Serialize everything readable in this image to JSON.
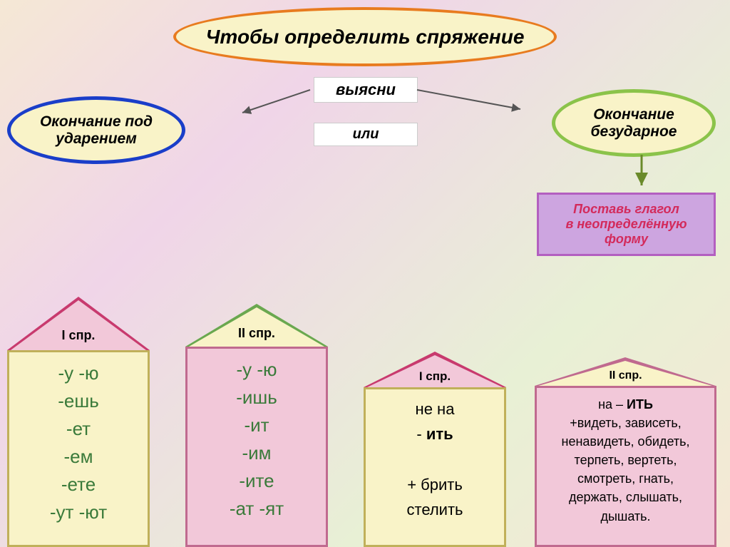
{
  "title": {
    "text": "Чтобы  определить  спряжение",
    "fontsize": 28,
    "bg": "#f9f3c8",
    "border": "#e87b1f"
  },
  "center": {
    "vyasni": "выясни",
    "ili": "или",
    "fontsize": 22,
    "color": "#000"
  },
  "left_oval": {
    "line1": "Окончание под",
    "line2": "ударением",
    "bg": "#f9f3c8",
    "border": "#1a3ec9",
    "fontsize": 21
  },
  "right_oval": {
    "line1": "Окончание",
    "line2": "безударное",
    "bg": "#f9f3c8",
    "border": "#8bc34a",
    "fontsize": 21
  },
  "purple_box": {
    "line1": "Поставь глагол",
    "line2": "в неопределённую",
    "line3": "форму",
    "bg": "#cda5e0",
    "border": "#b35fc0",
    "text_color": "#d32a5b",
    "fontsize": 18
  },
  "house1": {
    "label": "I спр.",
    "roof_bg": "#f2c8d9",
    "roof_border": "#c83a6e",
    "body_bg": "#f9f3c8",
    "body_border": "#c0b05a",
    "text_color": "#3a7a3a",
    "fontsize": 26,
    "lines": [
      "-у  -ю",
      "-ешь",
      "-ет",
      "-ем",
      "-ете",
      "-ут  -ют"
    ]
  },
  "house2": {
    "label": "II  спр.",
    "roof_bg": "#f9f3c8",
    "roof_border": "#6aa84f",
    "body_bg": "#f2c8d9",
    "body_border": "#c06a8f",
    "text_color": "#3a7a3a",
    "fontsize": 26,
    "lines": [
      "-у   -ю",
      "-ишь",
      "-ит",
      "-им",
      "-ите",
      "-ат  -ят"
    ]
  },
  "house3": {
    "label": "I спр.",
    "roof_bg": "#f2c8d9",
    "roof_border": "#c83a6e",
    "body_bg": "#f9f3c8",
    "body_border": "#c0b05a",
    "text_color": "#000",
    "fontsize": 22,
    "html": "не на<br>- <b>ить</b><br><br>+ брить<br>стелить"
  },
  "house4": {
    "label": "II спр.",
    "roof_bg": "#f9f3c8",
    "roof_border": "#c06a8f",
    "body_bg": "#f2c8d9",
    "body_border": "#c06a8f",
    "text_color": "#000",
    "fontsize": 18,
    "html": "на – <b>ИТЬ</b><br>+видеть, зависеть,<br>ненавидеть, обидеть,<br>терпеть, вертеть,<br>смотреть, гнать,<br>держать, слышать,<br>дышать."
  }
}
